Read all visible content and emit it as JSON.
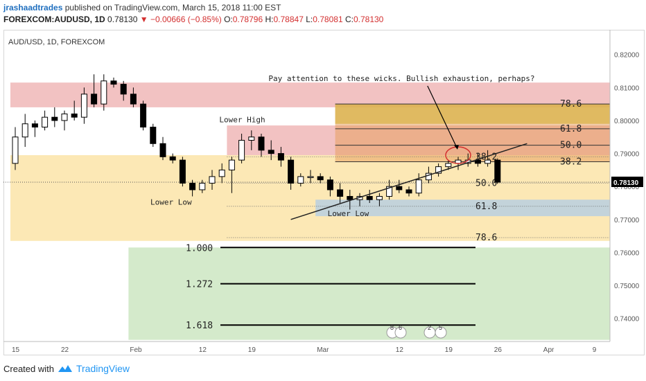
{
  "header": {
    "author": "jrashaadtrades",
    "published": "published on TradingView.com, March 15, 2018 11:00 EST",
    "symbol": "FOREXCOM:AUDUSD, 1D",
    "last": "0.78130",
    "change": "−0.00666 (−0.85%)",
    "o_label": "O:",
    "o": "0.78796",
    "h_label": "H:",
    "h": "0.78847",
    "l_label": "L:",
    "l": "0.78081",
    "c_label": "C:",
    "c": "0.78130"
  },
  "footer": {
    "created_with": "Created with",
    "brand": "TradingView"
  },
  "colors": {
    "up": "#ffffff",
    "down": "#000000",
    "supply": "#f0b7b7",
    "demand": "#fbe4a8",
    "blue_zone": "#b9cfe0",
    "green_zone": "#cde6c2",
    "orange": "#e8a060",
    "gold": "#d9b44a",
    "annotation": "#d32f2f"
  },
  "chart_data": {
    "type": "candlestick",
    "title": "AUD/USD, 1D, FOREXCOM",
    "last_price_label": "0.78130",
    "ylim": [
      0.733,
      0.8275
    ],
    "y_ticks": [
      "0.82000",
      "0.81000",
      "0.80000",
      "0.79000",
      "0.78000",
      "0.77000",
      "0.76000",
      "0.75000",
      "0.74000"
    ],
    "y_tick_values": [
      0.82,
      0.81,
      0.8,
      0.79,
      0.78,
      0.77,
      0.76,
      0.75,
      0.74
    ],
    "x_ticks": [
      "15",
      "22",
      "Feb",
      "12",
      "19",
      "Mar",
      "12",
      "19",
      "26",
      "Apr",
      "9"
    ],
    "x_tick_index": [
      0,
      5,
      12,
      19,
      24,
      31,
      39,
      44,
      49,
      54,
      59
    ],
    "candles": [
      [
        0.787,
        0.798,
        0.785,
        0.795
      ],
      [
        0.795,
        0.802,
        0.792,
        0.799
      ],
      [
        0.799,
        0.8,
        0.795,
        0.798
      ],
      [
        0.798,
        0.803,
        0.797,
        0.801
      ],
      [
        0.801,
        0.804,
        0.798,
        0.8
      ],
      [
        0.8,
        0.803,
        0.797,
        0.802
      ],
      [
        0.802,
        0.806,
        0.8,
        0.801
      ],
      [
        0.801,
        0.81,
        0.799,
        0.808
      ],
      [
        0.808,
        0.814,
        0.804,
        0.805
      ],
      [
        0.805,
        0.814,
        0.803,
        0.812
      ],
      [
        0.812,
        0.813,
        0.81,
        0.811
      ],
      [
        0.811,
        0.812,
        0.806,
        0.808
      ],
      [
        0.808,
        0.81,
        0.804,
        0.805
      ],
      [
        0.805,
        0.806,
        0.797,
        0.798
      ],
      [
        0.798,
        0.799,
        0.792,
        0.793
      ],
      [
        0.793,
        0.795,
        0.788,
        0.789
      ],
      [
        0.789,
        0.79,
        0.787,
        0.788
      ],
      [
        0.788,
        0.789,
        0.78,
        0.781
      ],
      [
        0.781,
        0.782,
        0.777,
        0.779
      ],
      [
        0.779,
        0.782,
        0.778,
        0.781
      ],
      [
        0.781,
        0.785,
        0.779,
        0.783
      ],
      [
        0.783,
        0.787,
        0.781,
        0.785
      ],
      [
        0.785,
        0.789,
        0.778,
        0.788
      ],
      [
        0.788,
        0.796,
        0.787,
        0.794
      ],
      [
        0.794,
        0.797,
        0.791,
        0.795
      ],
      [
        0.795,
        0.796,
        0.789,
        0.791
      ],
      [
        0.791,
        0.794,
        0.788,
        0.79
      ],
      [
        0.79,
        0.792,
        0.786,
        0.788
      ],
      [
        0.788,
        0.789,
        0.779,
        0.781
      ],
      [
        0.781,
        0.784,
        0.78,
        0.783
      ],
      [
        0.783,
        0.785,
        0.781,
        0.783
      ],
      [
        0.783,
        0.784,
        0.781,
        0.782
      ],
      [
        0.782,
        0.783,
        0.777,
        0.779
      ],
      [
        0.779,
        0.781,
        0.775,
        0.777
      ],
      [
        0.777,
        0.779,
        0.773,
        0.776
      ],
      [
        0.776,
        0.778,
        0.774,
        0.777
      ],
      [
        0.777,
        0.779,
        0.775,
        0.776
      ],
      [
        0.776,
        0.778,
        0.774,
        0.777
      ],
      [
        0.777,
        0.782,
        0.776,
        0.78
      ],
      [
        0.78,
        0.782,
        0.778,
        0.779
      ],
      [
        0.779,
        0.78,
        0.777,
        0.778
      ],
      [
        0.778,
        0.784,
        0.777,
        0.782
      ],
      [
        0.782,
        0.786,
        0.781,
        0.784
      ],
      [
        0.784,
        0.787,
        0.783,
        0.786
      ],
      [
        0.786,
        0.788,
        0.785,
        0.787
      ],
      [
        0.787,
        0.789,
        0.785,
        0.788
      ],
      [
        0.787,
        0.79,
        0.786,
        0.788
      ],
      [
        0.788,
        0.79,
        0.786,
        0.787
      ],
      [
        0.787,
        0.791,
        0.786,
        0.788
      ],
      [
        0.788,
        0.7885,
        0.7808,
        0.7813
      ]
    ],
    "candle_x_index": [
      0,
      1,
      2,
      3,
      4,
      5,
      6,
      7,
      8,
      9,
      10,
      11,
      12,
      13,
      14,
      15,
      16,
      17,
      18,
      19,
      20,
      21,
      22,
      23,
      24,
      25,
      26,
      27,
      28,
      29,
      30,
      31,
      32,
      33,
      34,
      35,
      36,
      37,
      38,
      39,
      40,
      41,
      42,
      43,
      44,
      45,
      46,
      47,
      48,
      49
    ],
    "zones": [
      {
        "name": "supply-upper",
        "from": 0,
        "to": 69,
        "y1": 0.804,
        "y2": 0.8115,
        "color": "supply"
      },
      {
        "name": "supply-lower",
        "from": 22,
        "to": 69,
        "y1": 0.7895,
        "y2": 0.7985,
        "color": "supply"
      },
      {
        "name": "demand-main",
        "from": 0,
        "to": 69,
        "y1": 0.7635,
        "y2": 0.7895,
        "color": "demand"
      },
      {
        "name": "fib-orange",
        "from": 33,
        "to": 69,
        "y1": 0.7875,
        "y2": 0.805,
        "color": "orange"
      },
      {
        "name": "fib-gold",
        "from": 33,
        "to": 69,
        "y1": 0.799,
        "y2": 0.805,
        "color": "gold"
      },
      {
        "name": "blue-zone",
        "from": 31,
        "to": 69,
        "y1": 0.771,
        "y2": 0.776,
        "color": "blue_zone"
      },
      {
        "name": "green-target",
        "from": 12,
        "to": 69,
        "y1": 0.7335,
        "y2": 0.7615,
        "color": "green_zone"
      }
    ],
    "fib_upper": [
      {
        "label": "78.6",
        "value": 0.805
      },
      {
        "label": "61.8",
        "value": 0.7975
      },
      {
        "label": "50.0",
        "value": 0.7925
      },
      {
        "label": "38.2",
        "value": 0.7875
      }
    ],
    "fib_lower": [
      {
        "label": "38.2",
        "value": 0.789
      },
      {
        "label": "50.0",
        "value": 0.781
      },
      {
        "label": "61.8",
        "value": 0.774
      },
      {
        "label": "78.6",
        "value": 0.7645
      }
    ],
    "extensions": [
      {
        "label": "1.000",
        "value": 0.7615
      },
      {
        "label": "1.272",
        "value": 0.7505
      },
      {
        "label": "1.618",
        "value": 0.738
      }
    ],
    "trendline": {
      "from": [
        28,
        0.77
      ],
      "to": [
        52,
        0.793
      ]
    },
    "annotations": [
      {
        "text": "Lower High",
        "x": 22,
        "y": 0.7995
      },
      {
        "text": "Lower Low",
        "x": 15,
        "y": 0.7745
      },
      {
        "text": "Lower Low",
        "x": 33,
        "y": 0.771
      },
      {
        "text": "Pay attention to these wicks. Bullish exhaustion, perhaps?",
        "x": 27,
        "y": 0.812
      }
    ],
    "event_flags": [
      "8",
      "6",
      "2",
      "5"
    ]
  }
}
